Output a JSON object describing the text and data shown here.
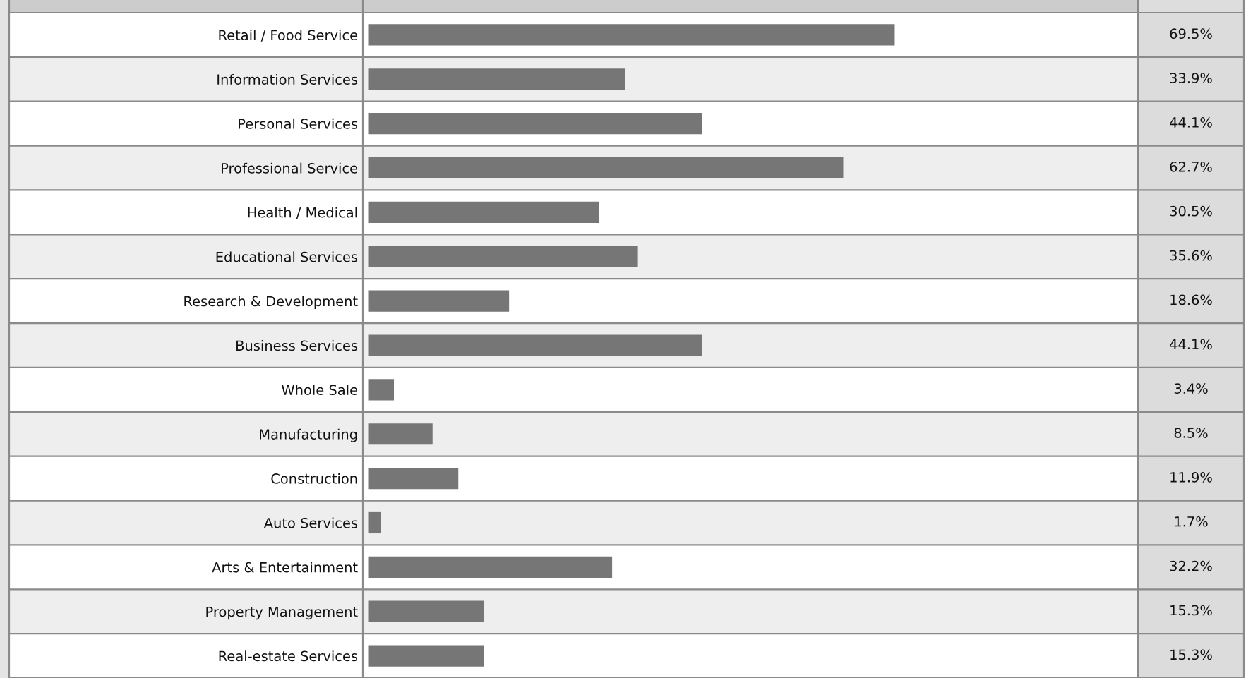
{
  "chart_data": {
    "type": "bar",
    "orientation": "horizontal",
    "categories": [
      "Retail / Food Service",
      "Information Services",
      "Personal Services",
      "Professional Service",
      "Health / Medical",
      "Educational Services",
      "Research & Development",
      "Business Services",
      "Whole Sale",
      "Manufacturing",
      "Construction",
      "Auto Services",
      "Arts & Entertainment",
      "Property Management",
      "Real-estate Services"
    ],
    "values": [
      69.5,
      33.9,
      44.1,
      62.7,
      30.5,
      35.6,
      18.6,
      44.1,
      3.4,
      8.5,
      11.9,
      1.7,
      32.2,
      15.3,
      15.3
    ],
    "value_labels": [
      "69.5%",
      "33.9%",
      "44.1%",
      "62.7%",
      "30.5%",
      "35.6%",
      "18.6%",
      "44.1%",
      "3.4%",
      "8.5%",
      "11.9%",
      "1.7%",
      "32.2%",
      "15.3%",
      "15.3%"
    ],
    "color": "#767676",
    "xlim": [
      -0.7,
      101.6
    ],
    "tick_labels": "y"
  }
}
